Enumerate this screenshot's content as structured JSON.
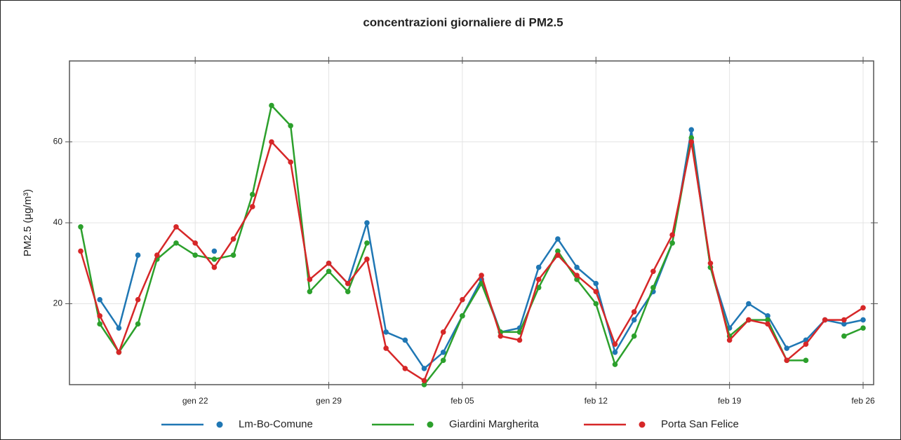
{
  "chart_data": {
    "type": "line",
    "title": "concentrazioni giornaliere di PM2.5",
    "y_label": "PM2.5 (μg/m³)",
    "categories": [
      null,
      null,
      null,
      null,
      null,
      null,
      "gen 22",
      null,
      null,
      null,
      null,
      null,
      null,
      "gen 29",
      null,
      null,
      null,
      null,
      null,
      null,
      "feb 05",
      null,
      null,
      null,
      null,
      null,
      null,
      "feb 12",
      null,
      null,
      null,
      null,
      null,
      null,
      "feb 19",
      null,
      null,
      null,
      null,
      null,
      null,
      "feb 26"
    ],
    "series": [
      {
        "name": "Lm-Bo-Comune",
        "color": "#1f77b4",
        "values": [
          null,
          21,
          14,
          32,
          null,
          null,
          null,
          33,
          null,
          null,
          null,
          null,
          null,
          30,
          25,
          40,
          13,
          11,
          4,
          8,
          17,
          26,
          13,
          14,
          29,
          36,
          29,
          25,
          8,
          16,
          23,
          35,
          63,
          29,
          14,
          20,
          17,
          9,
          11,
          16,
          15,
          16
        ]
      },
      {
        "name": "Giardini Margherita",
        "color": "#2ca02c",
        "values": [
          39,
          15,
          8,
          15,
          31,
          35,
          32,
          31,
          32,
          47,
          69,
          64,
          23,
          28,
          23,
          35,
          null,
          null,
          0,
          6,
          17,
          25,
          13,
          13,
          24,
          33,
          26,
          20,
          5,
          12,
          24,
          35,
          61,
          29,
          12,
          16,
          16,
          6,
          6,
          null,
          12,
          14
        ]
      },
      {
        "name": "Porta San Felice",
        "color": "#d62728",
        "values": [
          33,
          17,
          8,
          21,
          32,
          39,
          35,
          29,
          36,
          44,
          60,
          55,
          26,
          30,
          25,
          31,
          9,
          4,
          1,
          13,
          21,
          27,
          12,
          11,
          26,
          32,
          27,
          23,
          10,
          18,
          28,
          37,
          60,
          30,
          11,
          16,
          15,
          6,
          10,
          16,
          16,
          19
        ]
      }
    ],
    "ylim": [
      0,
      80
    ],
    "yticks": [
      20,
      40,
      60
    ],
    "grid": true,
    "legend": "bottom"
  }
}
